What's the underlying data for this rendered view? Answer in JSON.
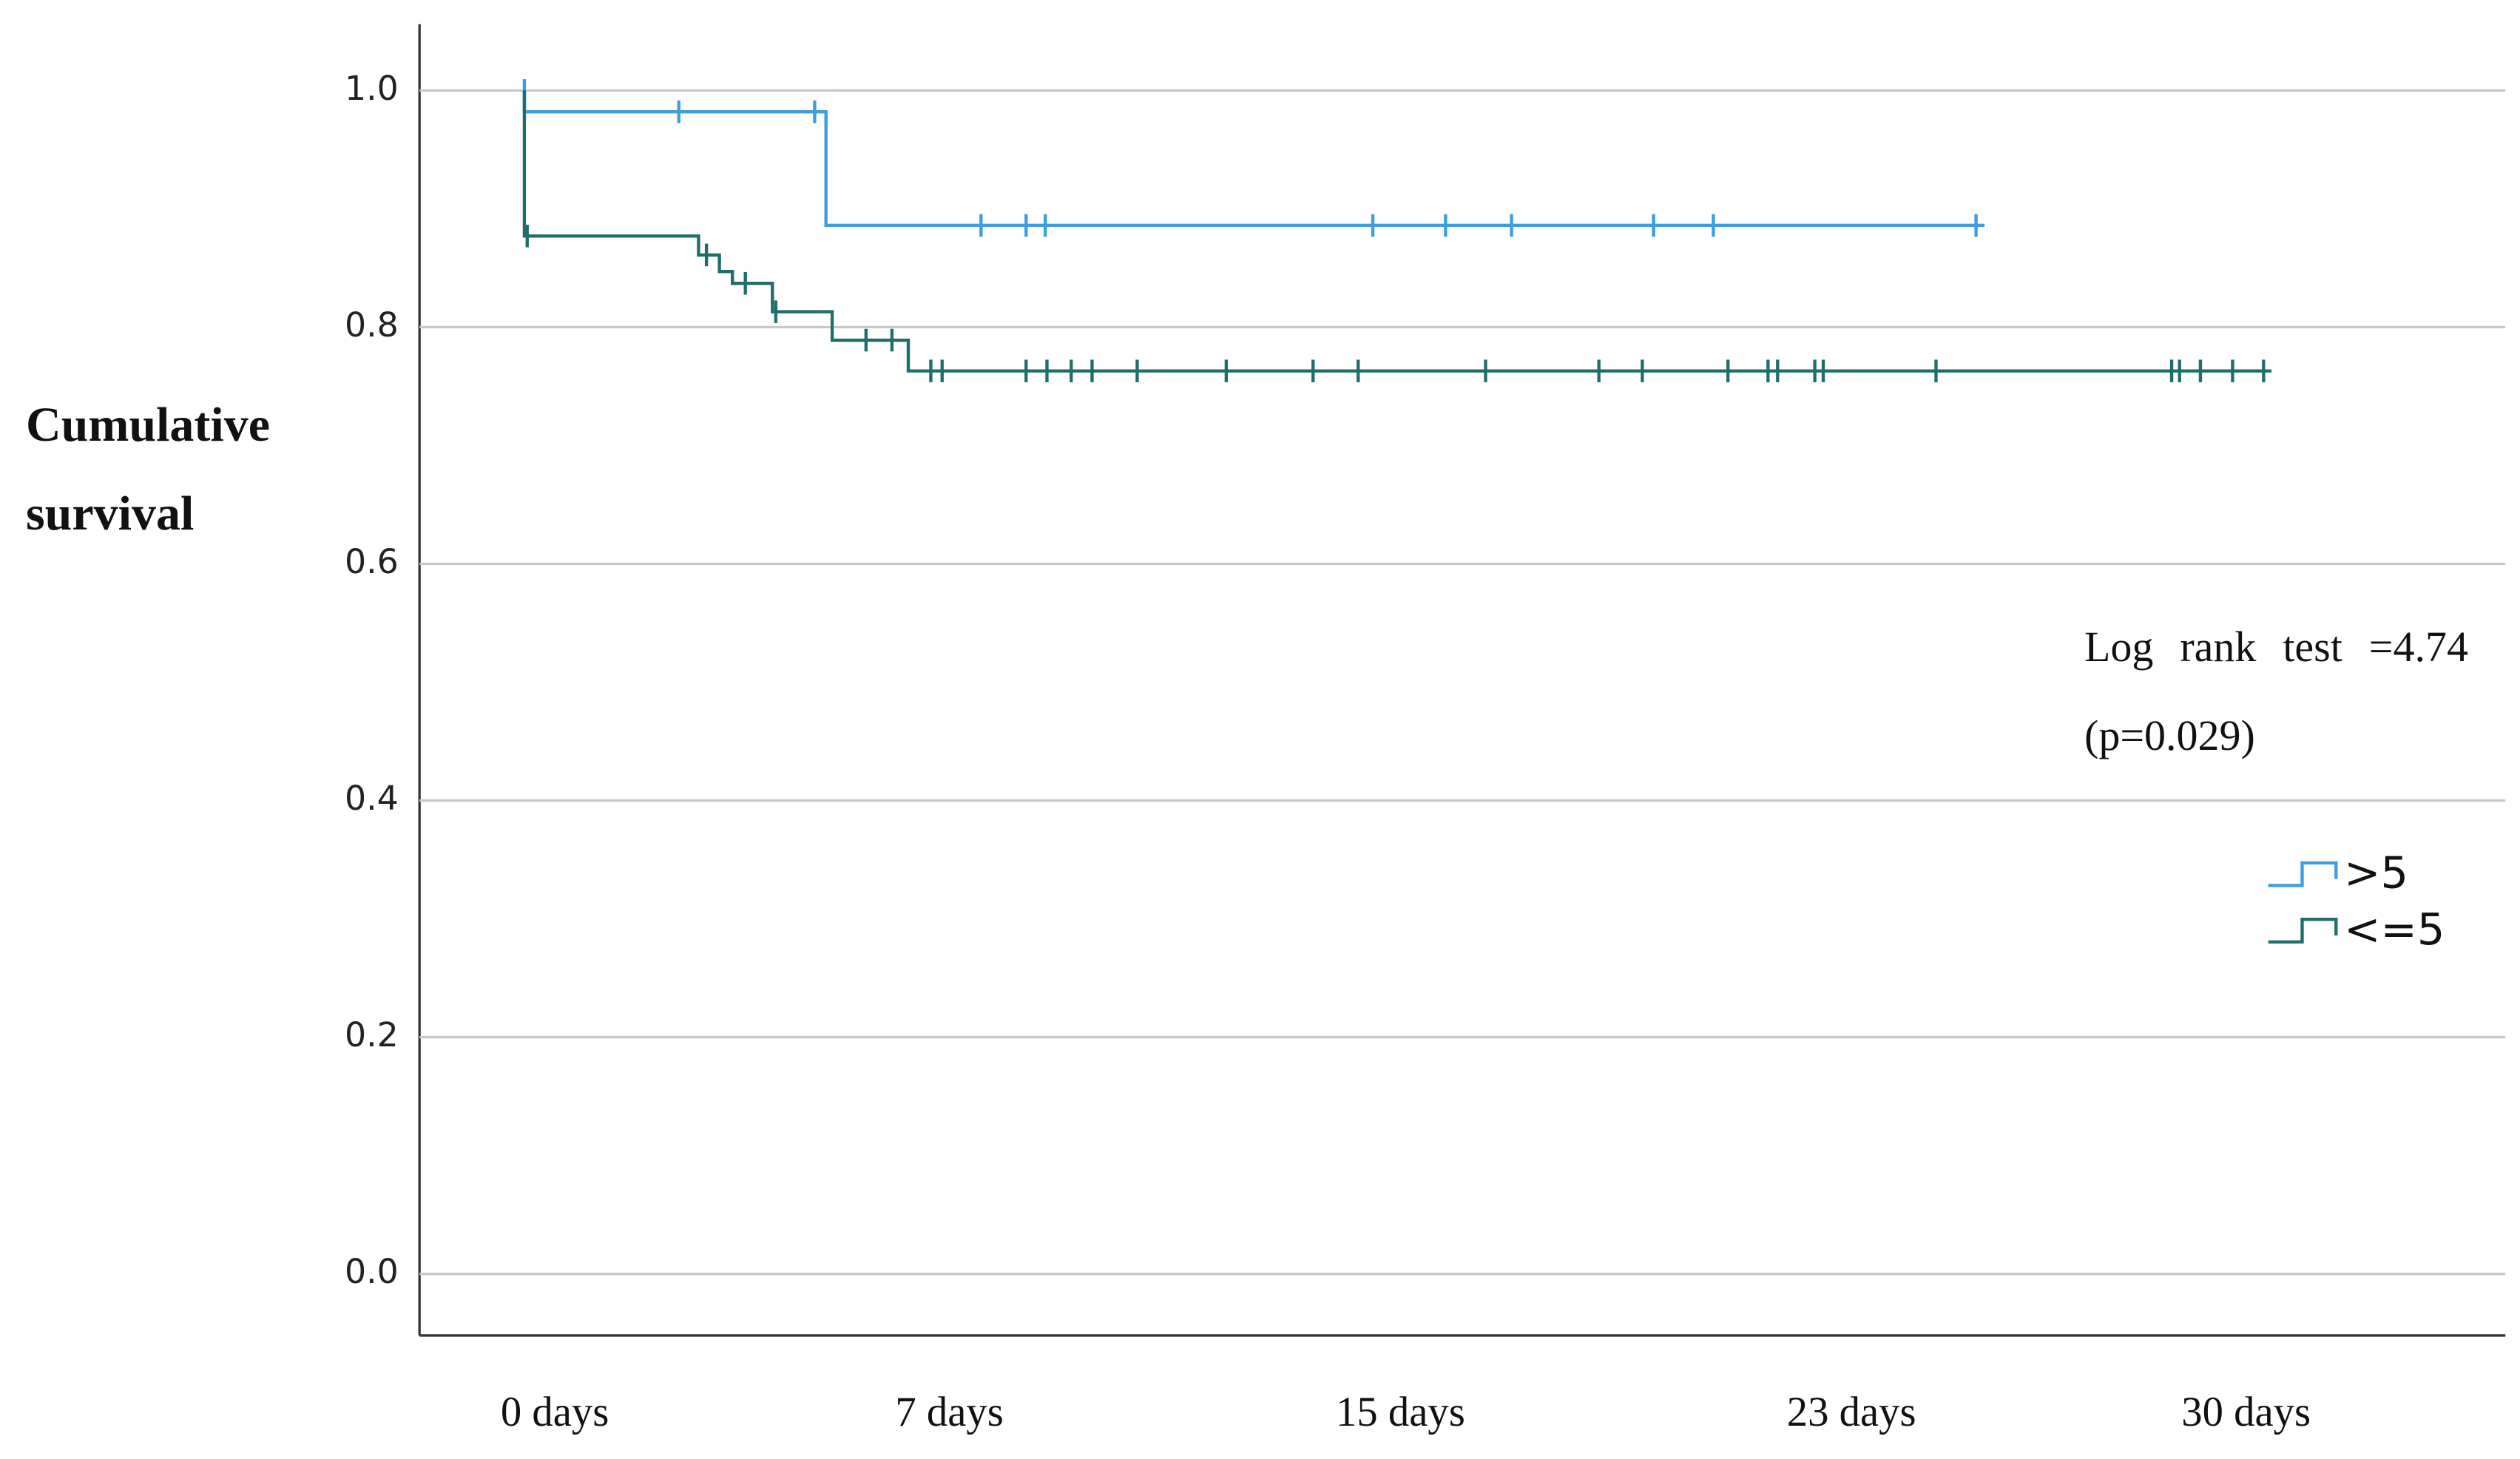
{
  "chart_data": {
    "type": "step",
    "ylabel": "Cumulative survival",
    "annotation": "Log rank test =4.74 (p=0.029)",
    "xlim": [
      -2.4,
      34.6
    ],
    "xticks": [
      {
        "value": 0,
        "label": "0 days"
      },
      {
        "value": 7,
        "label": "7 days"
      },
      {
        "value": 15,
        "label": "15 days"
      },
      {
        "value": 23,
        "label": "23 days"
      },
      {
        "value": 30,
        "label": "30 days"
      }
    ],
    "ylim": [
      -0.052,
      1.056
    ],
    "yticks": [
      {
        "value": 0,
        "label": "0.0"
      },
      0.2,
      0.4,
      0.6,
      0.8,
      {
        "value": 1,
        "label": "1.0"
      }
    ],
    "grid": true,
    "series": [
      {
        "name": ">5",
        "color": "#3d9de0",
        "x": [
          -0.54,
          -0.54,
          4.81,
          25.36
        ],
        "values": [
          1.0,
          0.982,
          0.886,
          0.886
        ],
        "censored": {
          "x": [
            -0.54,
            2.2,
            4.61,
            7.56,
            8.36,
            8.7,
            14.51,
            15.8,
            16.97,
            19.49,
            20.55,
            25.21
          ],
          "values": [
            1.0,
            0.982,
            0.982,
            0.886,
            0.886,
            0.886,
            0.886,
            0.886,
            0.886,
            0.886,
            0.886,
            0.886
          ]
        }
      },
      {
        "name": "<=5",
        "color": "#1f6e6b",
        "x": [
          -0.54,
          -0.54,
          2.55,
          2.92,
          3.15,
          3.86,
          4.92,
          6.27,
          30.45
        ],
        "values": [
          1.0,
          0.877,
          0.861,
          0.847,
          0.837,
          0.813,
          0.789,
          0.763,
          0.763
        ],
        "censored": {
          "x": [
            -0.49,
            2.69,
            3.38,
            3.92,
            5.52,
            5.98,
            6.67,
            6.87,
            8.36,
            8.73,
            9.16,
            9.53,
            10.33,
            11.91,
            13.45,
            14.25,
            16.51,
            18.52,
            19.29,
            20.81,
            21.52,
            21.69,
            22.35,
            22.5,
            24.5,
            28.68,
            28.82,
            29.19,
            29.76,
            30.31
          ],
          "values": [
            0.877,
            0.861,
            0.837,
            0.813,
            0.789,
            0.789,
            0.763,
            0.763,
            0.763,
            0.763,
            0.763,
            0.763,
            0.763,
            0.763,
            0.763,
            0.763,
            0.763,
            0.763,
            0.763,
            0.763,
            0.763,
            0.763,
            0.763,
            0.763,
            0.763,
            0.763,
            0.763,
            0.763,
            0.763,
            0.763
          ]
        }
      }
    ]
  }
}
